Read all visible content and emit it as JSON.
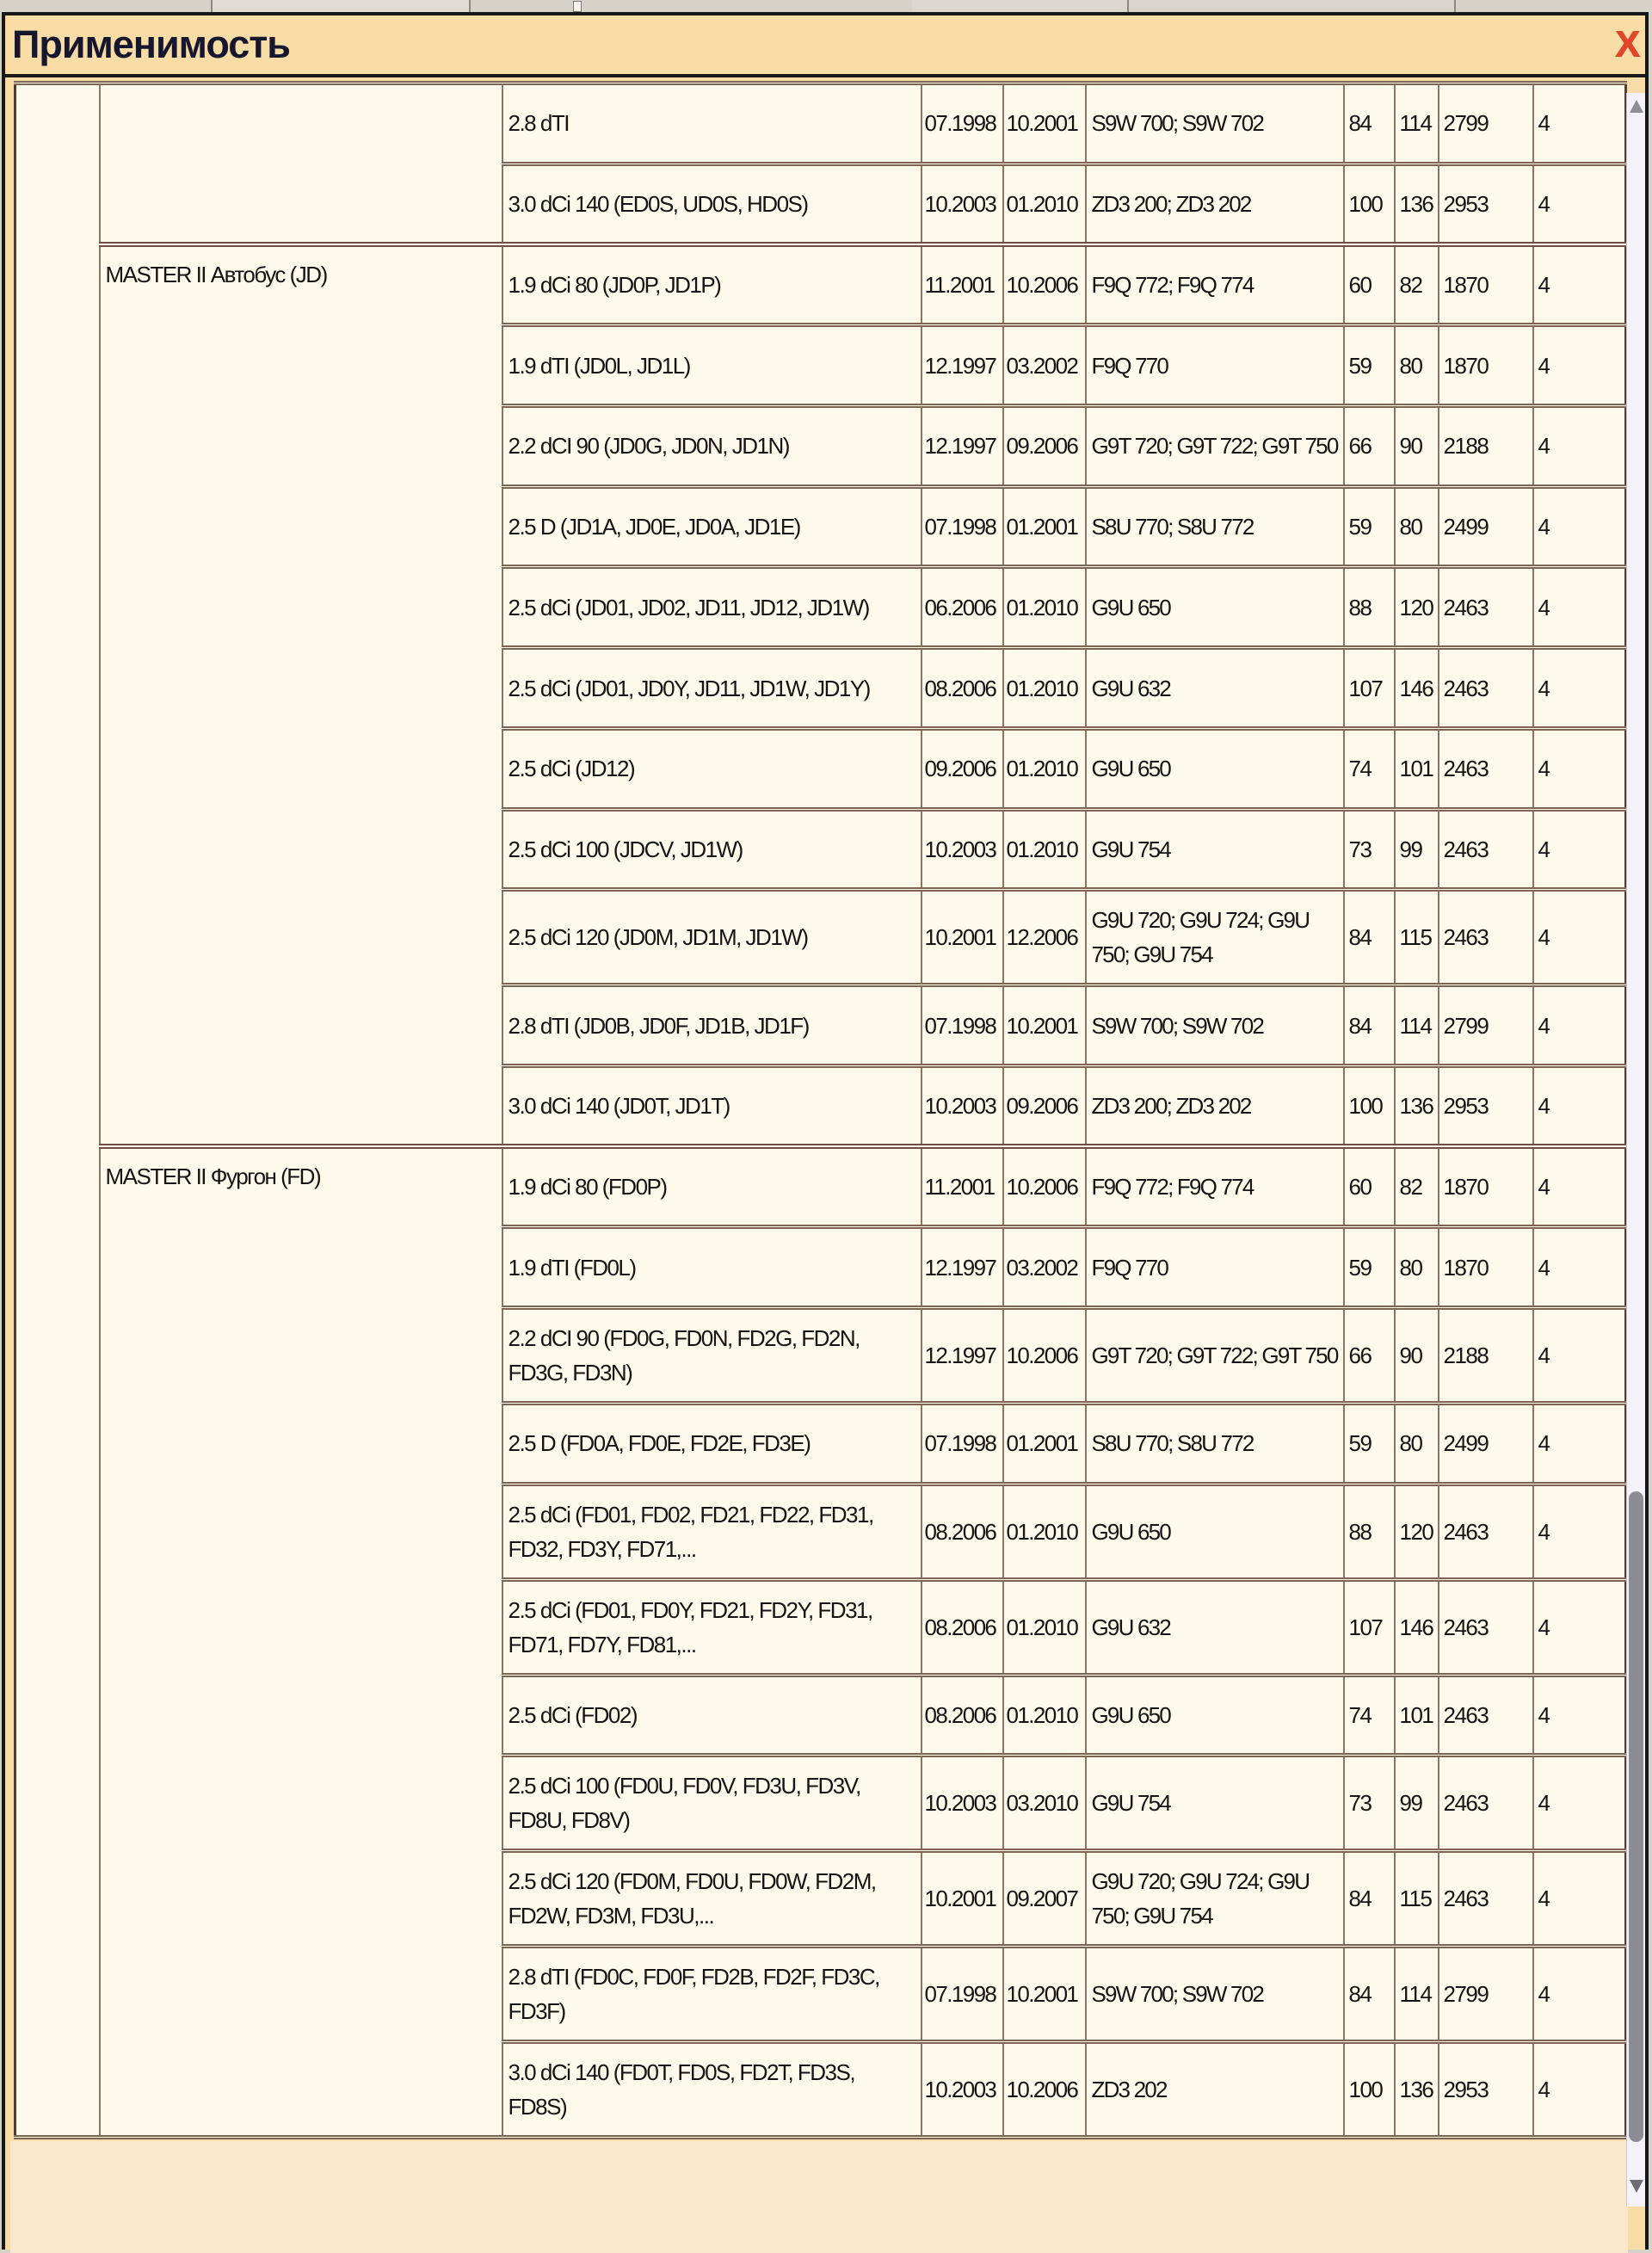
{
  "window": {
    "title": "Применимость",
    "close_glyph": "X"
  },
  "colors": {
    "window_bg": "#f8dca6",
    "footer_bg": "#fae8ca",
    "cell_bg": "#fdfaeb",
    "cell_border": "#8d7363",
    "title_text": "#16162e",
    "close_red": "#e0462a",
    "scrollbar_track": "#f3f1fa",
    "scrollbar_thumb": "#8c8c94"
  },
  "table": {
    "sections": [
      {
        "model": "",
        "rows": [
          {
            "engine": "2.8 dTI",
            "from": "07.1998",
            "to": "10.2001",
            "codes": "S9W 700; S9W 702",
            "kw": "84",
            "hp": "114",
            "cc": "2799",
            "cyl": "4"
          },
          {
            "engine": "3.0 dCi 140 (ED0S, UD0S, HD0S)",
            "from": "10.2003",
            "to": "01.2010",
            "codes": "ZD3 200; ZD3 202",
            "kw": "100",
            "hp": "136",
            "cc": "2953",
            "cyl": "4"
          }
        ]
      },
      {
        "model": "MASTER II Автобус (JD)",
        "rows": [
          {
            "engine": "1.9 dCi 80 (JD0P, JD1P)",
            "from": "11.2001",
            "to": "10.2006",
            "codes": "F9Q 772; F9Q 774",
            "kw": "60",
            "hp": "82",
            "cc": "1870",
            "cyl": "4"
          },
          {
            "engine": "1.9 dTI (JD0L, JD1L)",
            "from": "12.1997",
            "to": "03.2002",
            "codes": "F9Q 770",
            "kw": "59",
            "hp": "80",
            "cc": "1870",
            "cyl": "4"
          },
          {
            "engine": "2.2 dCI 90 (JD0G, JD0N, JD1N)",
            "from": "12.1997",
            "to": "09.2006",
            "codes": "G9T 720; G9T 722; G9T 750",
            "kw": "66",
            "hp": "90",
            "cc": "2188",
            "cyl": "4"
          },
          {
            "engine": "2.5 D (JD1A, JD0E, JD0A, JD1E)",
            "from": "07.1998",
            "to": "01.2001",
            "codes": "S8U 770; S8U 772",
            "kw": "59",
            "hp": "80",
            "cc": "2499",
            "cyl": "4"
          },
          {
            "engine": "2.5 dCi (JD01, JD02, JD11, JD12, JD1W)",
            "from": "06.2006",
            "to": "01.2010",
            "codes": "G9U 650",
            "kw": "88",
            "hp": "120",
            "cc": "2463",
            "cyl": "4"
          },
          {
            "engine": "2.5 dCi (JD01, JD0Y, JD11, JD1W, JD1Y)",
            "from": "08.2006",
            "to": "01.2010",
            "codes": "G9U 632",
            "kw": "107",
            "hp": "146",
            "cc": "2463",
            "cyl": "4"
          },
          {
            "engine": "2.5 dCi (JD12)",
            "from": "09.2006",
            "to": "01.2010",
            "codes": "G9U 650",
            "kw": "74",
            "hp": "101",
            "cc": "2463",
            "cyl": "4"
          },
          {
            "engine": "2.5 dCi 100 (JDCV, JD1W)",
            "from": "10.2003",
            "to": "01.2010",
            "codes": "G9U 754",
            "kw": "73",
            "hp": "99",
            "cc": "2463",
            "cyl": "4"
          },
          {
            "engine": "2.5 dCi 120 (JD0M, JD1M, JD1W)",
            "from": "10.2001",
            "to": "12.2006",
            "codes": "G9U 720; G9U 724; G9U 750; G9U 754",
            "kw": "84",
            "hp": "115",
            "cc": "2463",
            "cyl": "4"
          },
          {
            "engine": "2.8 dTI (JD0B, JD0F, JD1B, JD1F)",
            "from": "07.1998",
            "to": "10.2001",
            "codes": "S9W 700; S9W 702",
            "kw": "84",
            "hp": "114",
            "cc": "2799",
            "cyl": "4"
          },
          {
            "engine": "3.0 dCi 140 (JD0T, JD1T)",
            "from": "10.2003",
            "to": "09.2006",
            "codes": "ZD3 200; ZD3 202",
            "kw": "100",
            "hp": "136",
            "cc": "2953",
            "cyl": "4"
          }
        ]
      },
      {
        "model": "MASTER II Фургон (FD)",
        "rows": [
          {
            "engine": "1.9 dCi 80 (FD0P)",
            "from": "11.2001",
            "to": "10.2006",
            "codes": "F9Q 772; F9Q 774",
            "kw": "60",
            "hp": "82",
            "cc": "1870",
            "cyl": "4"
          },
          {
            "engine": "1.9 dTI (FD0L)",
            "from": "12.1997",
            "to": "03.2002",
            "codes": "F9Q 770",
            "kw": "59",
            "hp": "80",
            "cc": "1870",
            "cyl": "4"
          },
          {
            "engine": "2.2 dCI 90 (FD0G, FD0N, FD2G, FD2N, FD3G, FD3N)",
            "from": "12.1997",
            "to": "10.2006",
            "codes": "G9T 720; G9T 722; G9T 750",
            "kw": "66",
            "hp": "90",
            "cc": "2188",
            "cyl": "4"
          },
          {
            "engine": "2.5 D (FD0A, FD0E, FD2E, FD3E)",
            "from": "07.1998",
            "to": "01.2001",
            "codes": "S8U 770; S8U 772",
            "kw": "59",
            "hp": "80",
            "cc": "2499",
            "cyl": "4"
          },
          {
            "engine": "2.5 dCi (FD01, FD02, FD21, FD22, FD31, FD32, FD3Y, FD71,...",
            "from": "08.2006",
            "to": "01.2010",
            "codes": "G9U 650",
            "kw": "88",
            "hp": "120",
            "cc": "2463",
            "cyl": "4"
          },
          {
            "engine": "2.5 dCi (FD01, FD0Y, FD21, FD2Y, FD31, FD71, FD7Y, FD81,...",
            "from": "08.2006",
            "to": "01.2010",
            "codes": "G9U 632",
            "kw": "107",
            "hp": "146",
            "cc": "2463",
            "cyl": "4"
          },
          {
            "engine": "2.5 dCi (FD02)",
            "from": "08.2006",
            "to": "01.2010",
            "codes": "G9U 650",
            "kw": "74",
            "hp": "101",
            "cc": "2463",
            "cyl": "4"
          },
          {
            "engine": "2.5 dCi 100 (FD0U, FD0V, FD3U, FD3V, FD8U, FD8V)",
            "from": "10.2003",
            "to": "03.2010",
            "codes": "G9U 754",
            "kw": "73",
            "hp": "99",
            "cc": "2463",
            "cyl": "4"
          },
          {
            "engine": "2.5 dCi 120 (FD0M, FD0U, FD0W, FD2M, FD2W, FD3M, FD3U,...",
            "from": "10.2001",
            "to": "09.2007",
            "codes": "G9U 720; G9U 724; G9U 750; G9U 754",
            "kw": "84",
            "hp": "115",
            "cc": "2463",
            "cyl": "4"
          },
          {
            "engine": "2.8 dTI (FD0C, FD0F, FD2B, FD2F, FD3C, FD3F)",
            "from": "07.1998",
            "to": "10.2001",
            "codes": "S9W 700; S9W 702",
            "kw": "84",
            "hp": "114",
            "cc": "2799",
            "cyl": "4"
          },
          {
            "engine": "3.0 dCi 140 (FD0T, FD0S, FD2T, FD3S, FD8S)",
            "from": "10.2003",
            "to": "10.2006",
            "codes": "ZD3 202",
            "kw": "100",
            "hp": "136",
            "cc": "2953",
            "cyl": "4"
          }
        ]
      }
    ]
  }
}
